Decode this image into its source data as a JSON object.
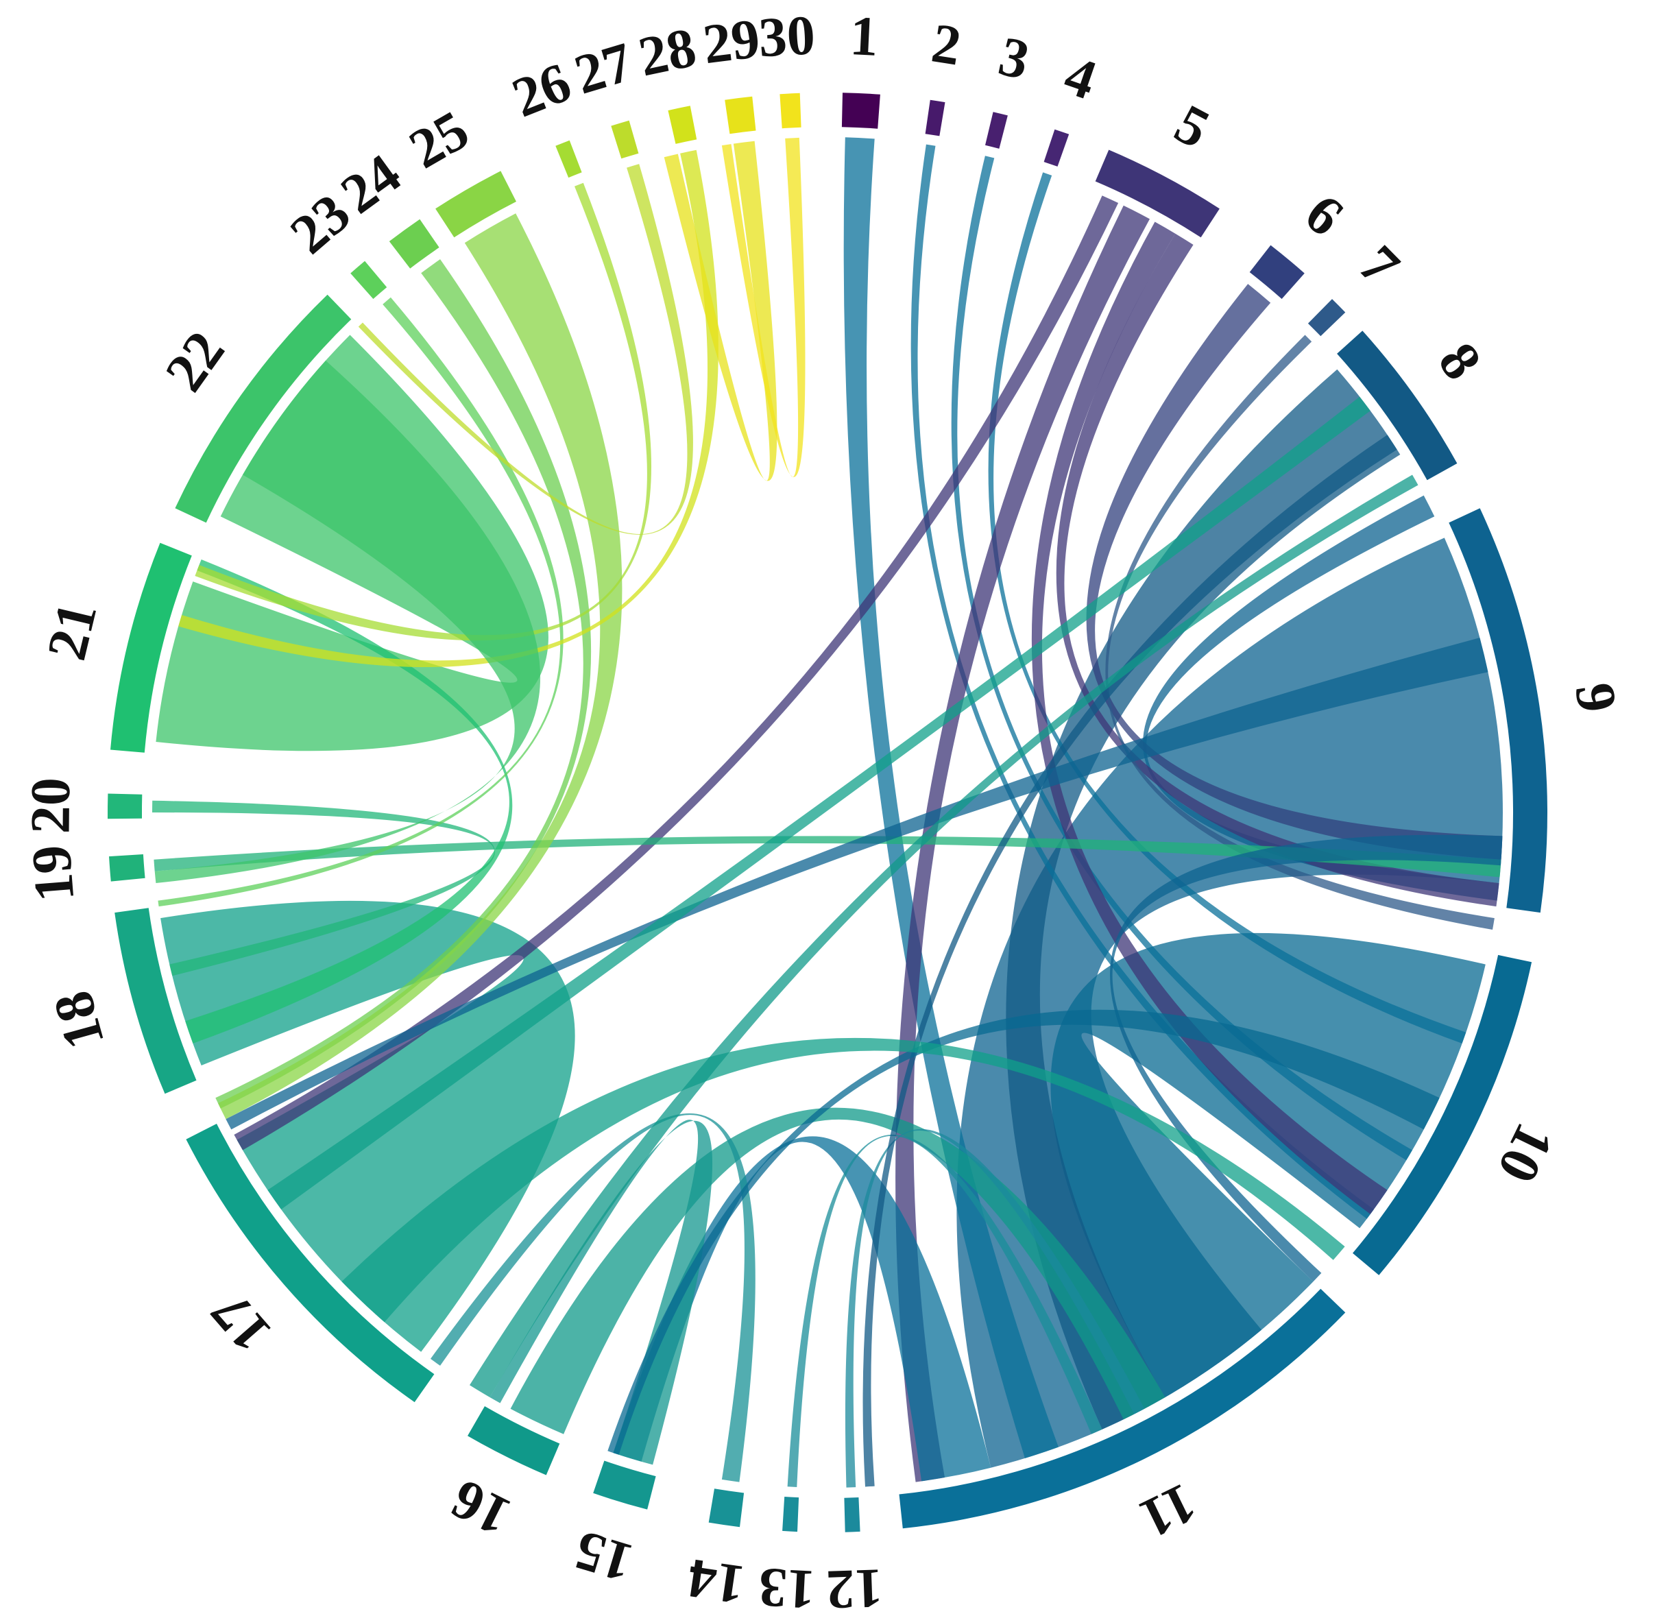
{
  "nodes": [
    {
      "label": "1",
      "color": "#440154"
    },
    {
      "label": "2",
      "color": "#471a6b"
    },
    {
      "label": "3",
      "color": "#48206f"
    },
    {
      "label": "4",
      "color": "#462673"
    },
    {
      "label": "5",
      "color": "#3e3577"
    },
    {
      "label": "6",
      "color": "#31407e"
    },
    {
      "label": "7",
      "color": "#2e5a8a"
    },
    {
      "label": "8",
      "color": "#125985"
    },
    {
      "label": "9",
      "color": "#0e6390"
    },
    {
      "label": "10",
      "color": "#086a92"
    },
    {
      "label": "11",
      "color": "#0a7099"
    },
    {
      "label": "12",
      "color": "#1b8a9c"
    },
    {
      "label": "13",
      "color": "#1a8e9a"
    },
    {
      "label": "14",
      "color": "#189296"
    },
    {
      "label": "15",
      "color": "#14978f"
    },
    {
      "label": "16",
      "color": "#10998a"
    },
    {
      "label": "17",
      "color": "#10a08a"
    },
    {
      "label": "18",
      "color": "#17a685"
    },
    {
      "label": "19",
      "color": "#20b27a"
    },
    {
      "label": "20",
      "color": "#22b77a"
    },
    {
      "label": "21",
      "color": "#1fc071"
    },
    {
      "label": "22",
      "color": "#3cc46a"
    },
    {
      "label": "23",
      "color": "#5dd05b"
    },
    {
      "label": "24",
      "color": "#6ccf50"
    },
    {
      "label": "25",
      "color": "#8ad545"
    },
    {
      "label": "26",
      "color": "#a5dc33"
    },
    {
      "label": "27",
      "color": "#bddc2c"
    },
    {
      "label": "28",
      "color": "#d2e21b"
    },
    {
      "label": "29",
      "color": "#e7e21a"
    },
    {
      "label": "30",
      "color": "#f2e31c"
    }
  ]
}
